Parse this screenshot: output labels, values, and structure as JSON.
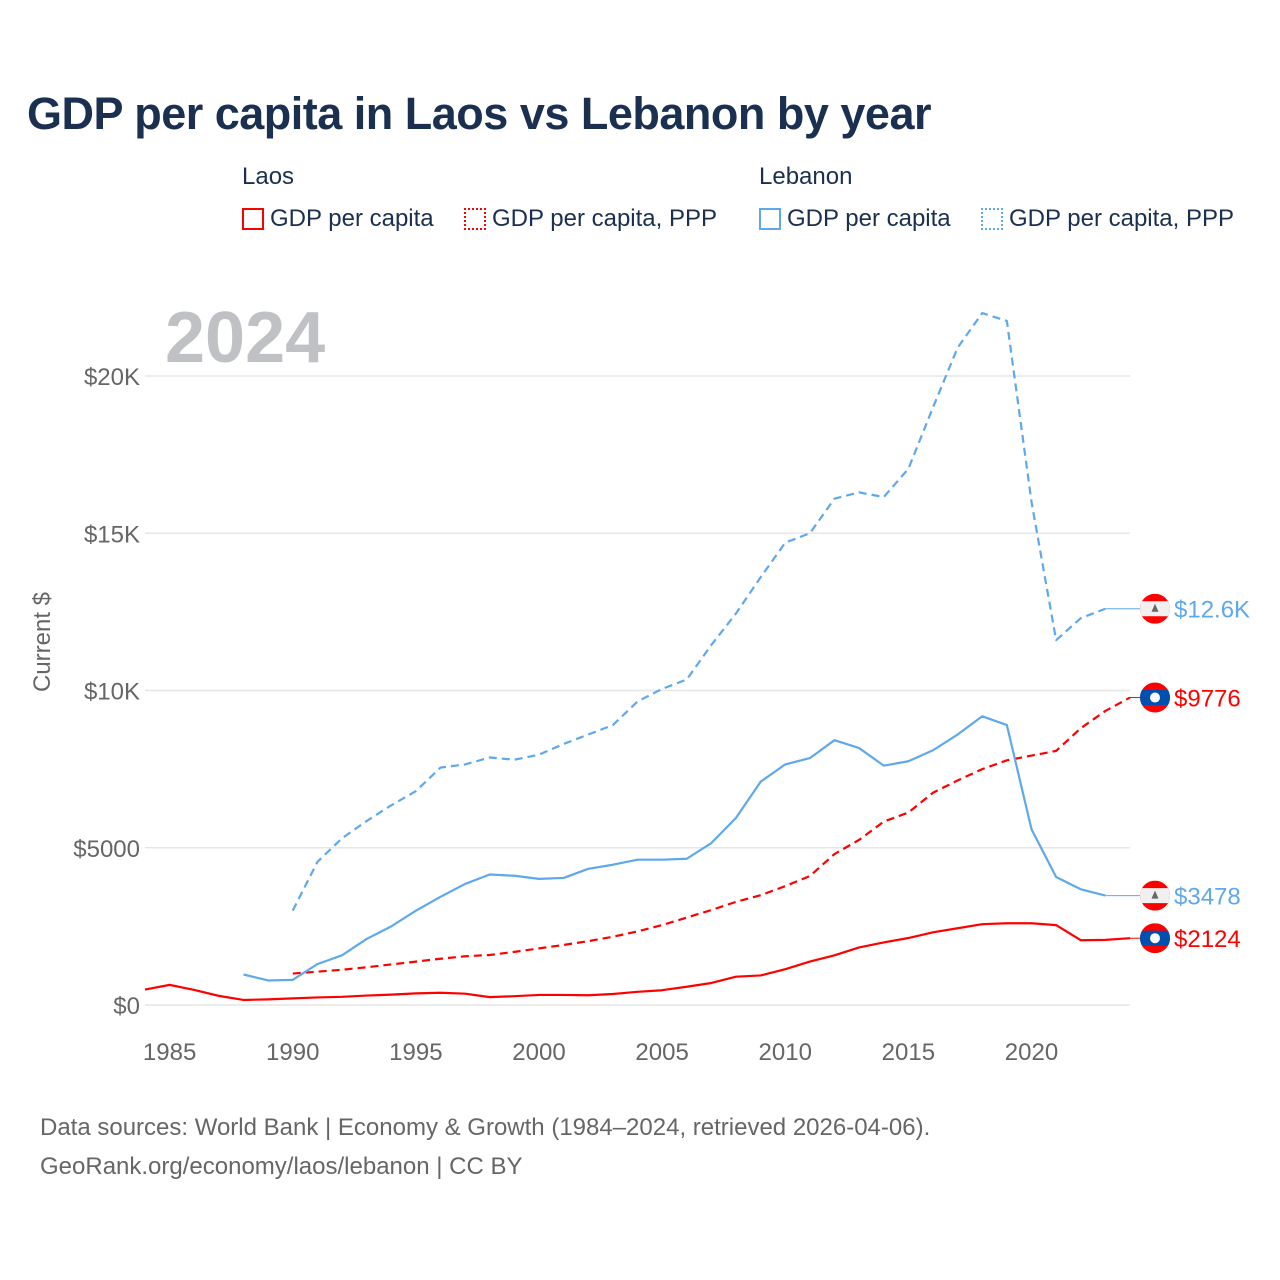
{
  "title": "GDP per capita in Laos vs Lebanon by year",
  "legend": {
    "groups": [
      {
        "label": "Laos",
        "items": [
          {
            "label": "GDP per capita",
            "style": "solid",
            "color": "#ff0000"
          },
          {
            "label": "GDP per capita, PPP",
            "style": "dotted",
            "color": "#ff0000"
          }
        ]
      },
      {
        "label": "Lebanon",
        "items": [
          {
            "label": "GDP per capita",
            "style": "solid",
            "color": "#5fa8ec"
          },
          {
            "label": "GDP per capita, PPP",
            "style": "dotted",
            "color": "#5fa8ec"
          }
        ]
      }
    ]
  },
  "year_watermark": "2024",
  "footer": {
    "line1": "Data sources: World Bank | Economy & Growth (1984–2024, retrieved 2026-04-06).",
    "line2": "GeoRank.org/economy/laos/lebanon | CC BY"
  },
  "chart_data": {
    "type": "line",
    "title": "GDP per capita in Laos vs Lebanon by year",
    "xlabel": "",
    "ylabel": "Current $",
    "xlim": [
      1984,
      2024
    ],
    "ylim": [
      0,
      22500
    ],
    "grid": true,
    "legend_position": "top",
    "x_ticks": [
      1985,
      1990,
      1995,
      2000,
      2005,
      2010,
      2015,
      2020
    ],
    "x_tick_labels": [
      "1985",
      "1990",
      "1995",
      "2000",
      "2005",
      "2010",
      "2015",
      "2020"
    ],
    "y_ticks": [
      0,
      5000,
      10000,
      15000,
      20000
    ],
    "y_tick_labels": [
      "$0",
      "$5000",
      "$10K",
      "$15K",
      "$20K"
    ],
    "series": [
      {
        "name": "Laos GDP per capita",
        "color": "#ff0000",
        "dash": false,
        "end_label": "$2124",
        "flag": "laos",
        "x": [
          1984,
          1985,
          1986,
          1987,
          1988,
          1989,
          1990,
          1991,
          1992,
          1993,
          1994,
          1995,
          1996,
          1997,
          1998,
          1999,
          2000,
          2001,
          2002,
          2003,
          2004,
          2005,
          2006,
          2007,
          2008,
          2009,
          2010,
          2011,
          2012,
          2013,
          2014,
          2015,
          2016,
          2017,
          2018,
          2019,
          2020,
          2021,
          2022,
          2023,
          2024
        ],
        "values": [
          490,
          640,
          480,
          290,
          160,
          180,
          210,
          240,
          260,
          300,
          330,
          370,
          390,
          360,
          250,
          280,
          320,
          320,
          310,
          350,
          420,
          470,
          580,
          700,
          900,
          940,
          1140,
          1380,
          1580,
          1830,
          1990,
          2130,
          2310,
          2440,
          2570,
          2600,
          2600,
          2540,
          2060,
          2070,
          2124
        ]
      },
      {
        "name": "Laos GDP per capita, PPP",
        "color": "#ff0000",
        "dash": true,
        "end_label": "$9776",
        "flag": "laos",
        "x": [
          1990,
          1991,
          1992,
          1993,
          1994,
          1995,
          1996,
          1997,
          1998,
          1999,
          2000,
          2001,
          2002,
          2003,
          2004,
          2005,
          2006,
          2007,
          2008,
          2009,
          2010,
          2011,
          2012,
          2013,
          2014,
          2015,
          2016,
          2017,
          2018,
          2019,
          2020,
          2021,
          2022,
          2023,
          2024
        ],
        "values": [
          1000,
          1060,
          1120,
          1200,
          1290,
          1380,
          1470,
          1550,
          1590,
          1690,
          1800,
          1910,
          2030,
          2170,
          2340,
          2540,
          2780,
          3020,
          3280,
          3490,
          3780,
          4100,
          4800,
          5250,
          5830,
          6120,
          6750,
          7140,
          7500,
          7780,
          7930,
          8080,
          8800,
          9350,
          9776
        ]
      },
      {
        "name": "Lebanon GDP per capita",
        "color": "#5fa8ec",
        "dash": false,
        "end_label": "$3478",
        "flag": "lebanon",
        "x": [
          1988,
          1989,
          1990,
          1991,
          1992,
          1993,
          1994,
          1995,
          1996,
          1997,
          1998,
          1999,
          2000,
          2001,
          2002,
          2003,
          2004,
          2005,
          2006,
          2007,
          2008,
          2009,
          2010,
          2011,
          2012,
          2013,
          2014,
          2015,
          2016,
          2017,
          2018,
          2019,
          2020,
          2021,
          2022,
          2023
        ],
        "values": [
          970,
          780,
          800,
          1300,
          1580,
          2100,
          2500,
          3000,
          3440,
          3850,
          4150,
          4110,
          4010,
          4040,
          4330,
          4460,
          4620,
          4620,
          4650,
          5150,
          5950,
          7100,
          7650,
          7850,
          8420,
          8170,
          7610,
          7750,
          8100,
          8600,
          9180,
          8900,
          5590,
          4070,
          3680,
          3478
        ]
      },
      {
        "name": "Lebanon GDP per capita, PPP",
        "color": "#5fa8ec",
        "dash": true,
        "end_label": "$12.6K",
        "flag": "lebanon",
        "x": [
          1990,
          1991,
          1992,
          1993,
          1994,
          1995,
          1996,
          1997,
          1998,
          1999,
          2000,
          2001,
          2002,
          2003,
          2004,
          2005,
          2006,
          2007,
          2008,
          2009,
          2010,
          2011,
          2012,
          2013,
          2014,
          2015,
          2016,
          2017,
          2018,
          2019,
          2020,
          2021,
          2022,
          2023
        ],
        "values": [
          3000,
          4550,
          5300,
          5850,
          6350,
          6800,
          7550,
          7650,
          7870,
          7800,
          7960,
          8300,
          8600,
          8900,
          9650,
          10050,
          10350,
          11450,
          12450,
          13600,
          14700,
          15000,
          16100,
          16300,
          16150,
          17050,
          19000,
          20900,
          22000,
          21750,
          16000,
          11600,
          12300,
          12600
        ]
      }
    ]
  }
}
